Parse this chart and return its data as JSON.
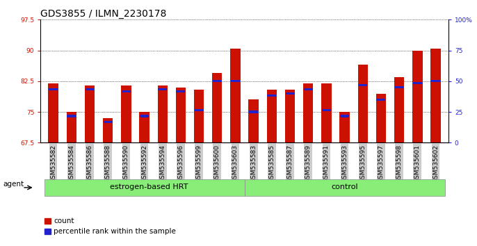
{
  "title": "GDS3855 / ILMN_2230178",
  "samples": [
    "GSM535582",
    "GSM535584",
    "GSM535586",
    "GSM535588",
    "GSM535590",
    "GSM535592",
    "GSM535594",
    "GSM535596",
    "GSM535599",
    "GSM535600",
    "GSM535603",
    "GSM535583",
    "GSM535585",
    "GSM535587",
    "GSM535589",
    "GSM535591",
    "GSM535593",
    "GSM535595",
    "GSM535597",
    "GSM535598",
    "GSM535601",
    "GSM535602"
  ],
  "red_values": [
    82.0,
    75.0,
    81.5,
    73.5,
    81.5,
    75.0,
    81.5,
    81.0,
    80.5,
    84.5,
    90.5,
    78.0,
    80.5,
    80.5,
    82.0,
    82.0,
    75.0,
    86.5,
    79.5,
    83.5,
    90.0,
    90.5
  ],
  "blue_values": [
    80.5,
    74.0,
    80.5,
    72.5,
    80.0,
    74.0,
    80.5,
    80.0,
    75.5,
    82.5,
    82.5,
    75.0,
    79.0,
    79.5,
    80.5,
    75.5,
    74.0,
    81.5,
    78.0,
    81.0,
    82.0,
    82.5
  ],
  "group1_label": "estrogen-based HRT",
  "group2_label": "control",
  "group1_count": 11,
  "group2_count": 11,
  "ylim_left": [
    67.5,
    97.5
  ],
  "yticks_left": [
    67.5,
    75.0,
    82.5,
    90.0,
    97.5
  ],
  "ytick_labels_left": [
    "67.5",
    "75",
    "82.5",
    "90",
    "97.5"
  ],
  "ylim_right": [
    0,
    100
  ],
  "yticks_right": [
    0,
    25,
    50,
    75,
    100
  ],
  "ytick_labels_right": [
    "0",
    "25",
    "50",
    "75",
    "100%"
  ],
  "legend_count_label": "count",
  "legend_pct_label": "percentile rank within the sample",
  "bar_color": "#cc1100",
  "blue_color": "#2222cc",
  "group_bg_color": "#88ee77",
  "tick_bg_color": "#cccccc",
  "bar_width": 0.55,
  "title_fontsize": 10,
  "tick_fontsize": 6.5,
  "agent_label": "agent"
}
